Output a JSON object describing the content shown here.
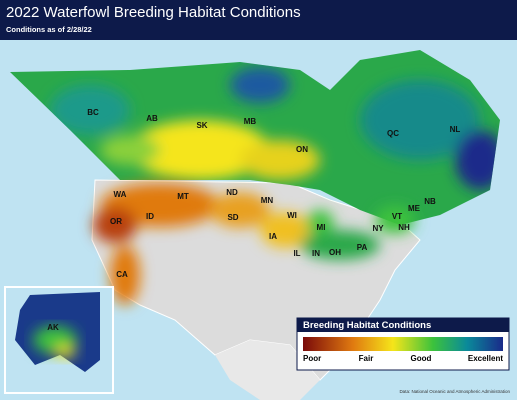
{
  "header": {
    "title": "2022 Waterfowl Breeding Habitat Conditions",
    "subtitle": "Conditions as of 2/28/22"
  },
  "regions": [
    "BC",
    "AB",
    "SK",
    "MB",
    "ON",
    "QC",
    "NL",
    "WA",
    "OR",
    "ID",
    "MT",
    "ND",
    "SD",
    "MN",
    "WI",
    "MI",
    "IA",
    "IL",
    "IN",
    "OH",
    "PA",
    "NY",
    "VT",
    "NH",
    "ME",
    "NB",
    "CA",
    "AK"
  ],
  "legend": {
    "title": "Breeding Habitat Conditions",
    "labels": [
      "Poor",
      "Fair",
      "Good",
      "Excellent"
    ]
  },
  "source": "Data: National Oceanic and Atmospheric Administration"
}
